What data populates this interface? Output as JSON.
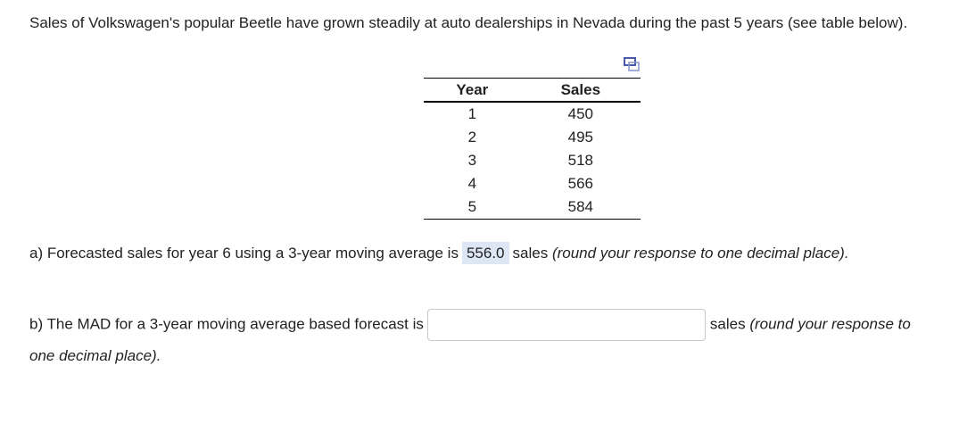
{
  "intro": "Sales of Volkswagen's popular Beetle have grown steadily at auto dealerships in Nevada during the past 5 years (see table below).",
  "table": {
    "headers": [
      "Year",
      "Sales"
    ],
    "rows": [
      [
        "1",
        "450"
      ],
      [
        "2",
        "495"
      ],
      [
        "3",
        "518"
      ],
      [
        "4",
        "566"
      ],
      [
        "5",
        "584"
      ]
    ]
  },
  "part_a": {
    "prefix": "a) Forecasted sales for year 6 using a 3-year moving average is",
    "answer": "556.0",
    "unit": "sales",
    "note": "(round your response to one decimal place)."
  },
  "part_b": {
    "prefix": "b) The MAD for a 3-year moving average based forecast is",
    "value": "",
    "unit": "sales",
    "note": "(round your response to one decimal place)."
  }
}
